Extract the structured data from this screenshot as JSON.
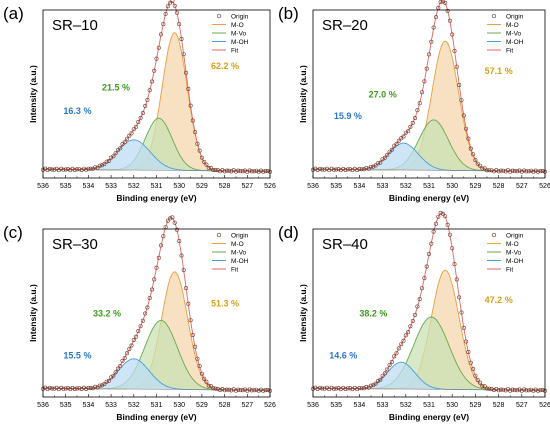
{
  "figure": {
    "colors": {
      "origin_marker_edge": "#6b3a2a",
      "m_o": "#e8a040",
      "m_vo": "#6aa84f",
      "m_oh": "#4a9fd8",
      "fit": "#e06666",
      "m_o_fill": "#f6d6ad",
      "m_vo_fill": "#c9e2b3",
      "m_oh_fill": "#bcdcf3",
      "label_m_o": "#d4a017",
      "label_m_vo": "#3c9a1e",
      "label_m_oh": "#2b78c8"
    }
  },
  "chart_data": [
    {
      "letter": "(a)",
      "type": "area",
      "title": "SR–10",
      "xlabel": "Binding energy (eV)",
      "ylabel": "Intensity (a.u.)",
      "x_ticks": [
        "536",
        "535",
        "534",
        "533",
        "532",
        "531",
        "530",
        "529",
        "528",
        "527",
        "526"
      ],
      "xlim": [
        536,
        526
      ],
      "x_reversed": true,
      "legend_position": "top-right",
      "legend": [
        "Origin",
        "M-O",
        "M-Vo",
        "M-OH",
        "Fit"
      ],
      "components": [
        {
          "name": "M-O",
          "center": 530.2,
          "fwhm": 1.3,
          "height": 0.82,
          "percent_label": "62.2 %"
        },
        {
          "name": "M-Vo",
          "center": 530.9,
          "fwhm": 1.4,
          "height": 0.31,
          "percent_label": "21.5 %"
        },
        {
          "name": "M-OH",
          "center": 532.0,
          "fwhm": 1.7,
          "height": 0.18,
          "percent_label": "16.3 %"
        }
      ]
    },
    {
      "letter": "(b)",
      "type": "area",
      "title": "SR–20",
      "xlabel": "Binding energy (eV)",
      "ylabel": "Intensity (a.u.)",
      "x_ticks": [
        "536",
        "535",
        "534",
        "533",
        "532",
        "531",
        "530",
        "529",
        "528",
        "527",
        "526"
      ],
      "xlim": [
        536,
        526
      ],
      "x_reversed": true,
      "legend_position": "top-right",
      "legend": [
        "Origin",
        "M-O",
        "M-Vo",
        "M-OH",
        "Fit"
      ],
      "components": [
        {
          "name": "M-O",
          "center": 530.3,
          "fwhm": 1.35,
          "height": 0.77,
          "percent_label": "57.1 %"
        },
        {
          "name": "M-Vo",
          "center": 530.8,
          "fwhm": 1.5,
          "height": 0.3,
          "percent_label": "27.0 %"
        },
        {
          "name": "M-OH",
          "center": 532.1,
          "fwhm": 1.5,
          "height": 0.16,
          "percent_label": "15.9 %"
        }
      ]
    },
    {
      "letter": "(c)",
      "type": "area",
      "title": "SR–30",
      "xlabel": "Binding energy (eV)",
      "ylabel": "Intensity (a.u.)",
      "x_ticks": [
        "536",
        "535",
        "534",
        "533",
        "532",
        "531",
        "530",
        "529",
        "528",
        "527",
        "526"
      ],
      "xlim": [
        536,
        526
      ],
      "x_reversed": true,
      "legend_position": "top-right",
      "legend": [
        "Origin",
        "M-O",
        "M-Vo",
        "M-OH",
        "Fit"
      ],
      "components": [
        {
          "name": "M-O",
          "center": 530.2,
          "fwhm": 1.35,
          "height": 0.7,
          "percent_label": "51.3 %"
        },
        {
          "name": "M-Vo",
          "center": 530.8,
          "fwhm": 1.7,
          "height": 0.41,
          "percent_label": "33.2 %"
        },
        {
          "name": "M-OH",
          "center": 532.0,
          "fwhm": 1.6,
          "height": 0.18,
          "percent_label": "15.5 %"
        }
      ]
    },
    {
      "letter": "(d)",
      "type": "area",
      "title": "SR–40",
      "xlabel": "Binding energy (eV)",
      "ylabel": "Intensity (a.u.)",
      "x_ticks": [
        "536",
        "535",
        "534",
        "533",
        "532",
        "531",
        "530",
        "529",
        "528",
        "527",
        "526"
      ],
      "xlim": [
        536,
        526
      ],
      "x_reversed": true,
      "legend_position": "top-right",
      "legend": [
        "Origin",
        "M-O",
        "M-Vo",
        "M-OH",
        "Fit"
      ],
      "components": [
        {
          "name": "M-O",
          "center": 530.3,
          "fwhm": 1.4,
          "height": 0.71,
          "percent_label": "47.2 %"
        },
        {
          "name": "M-Vo",
          "center": 530.9,
          "fwhm": 1.8,
          "height": 0.43,
          "percent_label": "38.2 %"
        },
        {
          "name": "M-OH",
          "center": 532.2,
          "fwhm": 1.4,
          "height": 0.16,
          "percent_label": "14.6 %"
        }
      ]
    }
  ]
}
